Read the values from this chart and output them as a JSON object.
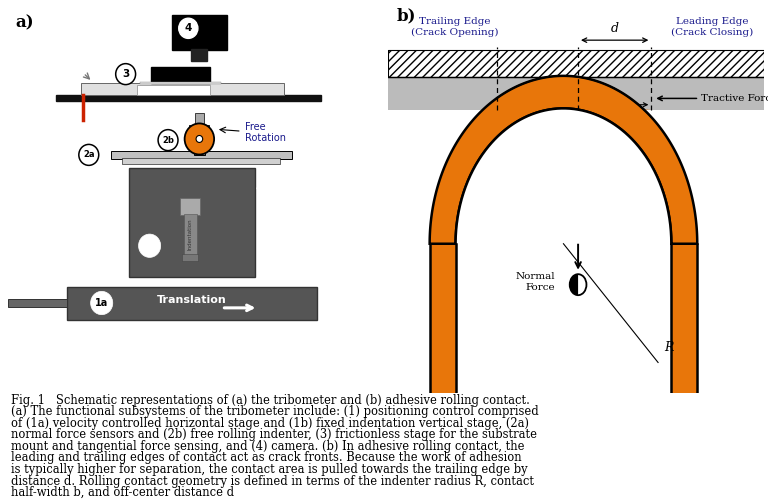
{
  "fig_width": 7.68,
  "fig_height": 5.01,
  "dpi": 100,
  "bg_color": "#ffffff",
  "orange_color": "#E8760A",
  "gray_dark": "#555555",
  "gray_medium": "#888888",
  "gray_light": "#cccccc",
  "black": "#000000",
  "navy": "#1a1a8c",
  "caption_lines": [
    "Fig. 1   Schematic representations of (a) the tribometer and (b) adhesive rolling contact.",
    "(a) The functional subsystems of the tribometer include: (1) positioning control comprised",
    "of (1a) velocity controlled horizontal stage and (1b) fixed indentation vertical stage, (2a)",
    "normal force sensors and (2b) free rolling indenter, (3) frictionless stage for the substrate",
    "mount and tangential force sensing, and (4) camera. (b) In adhesive rolling contact, the",
    "leading and trailing edges of contact act as crack fronts. Because the work of adhesion",
    "is typically higher for separation, the contact area is pulled towards the trailing edge by",
    "distance d. Rolling contact geometry is defined in terms of the indenter radius R, contact",
    "half-width b, and off-center distance d"
  ]
}
